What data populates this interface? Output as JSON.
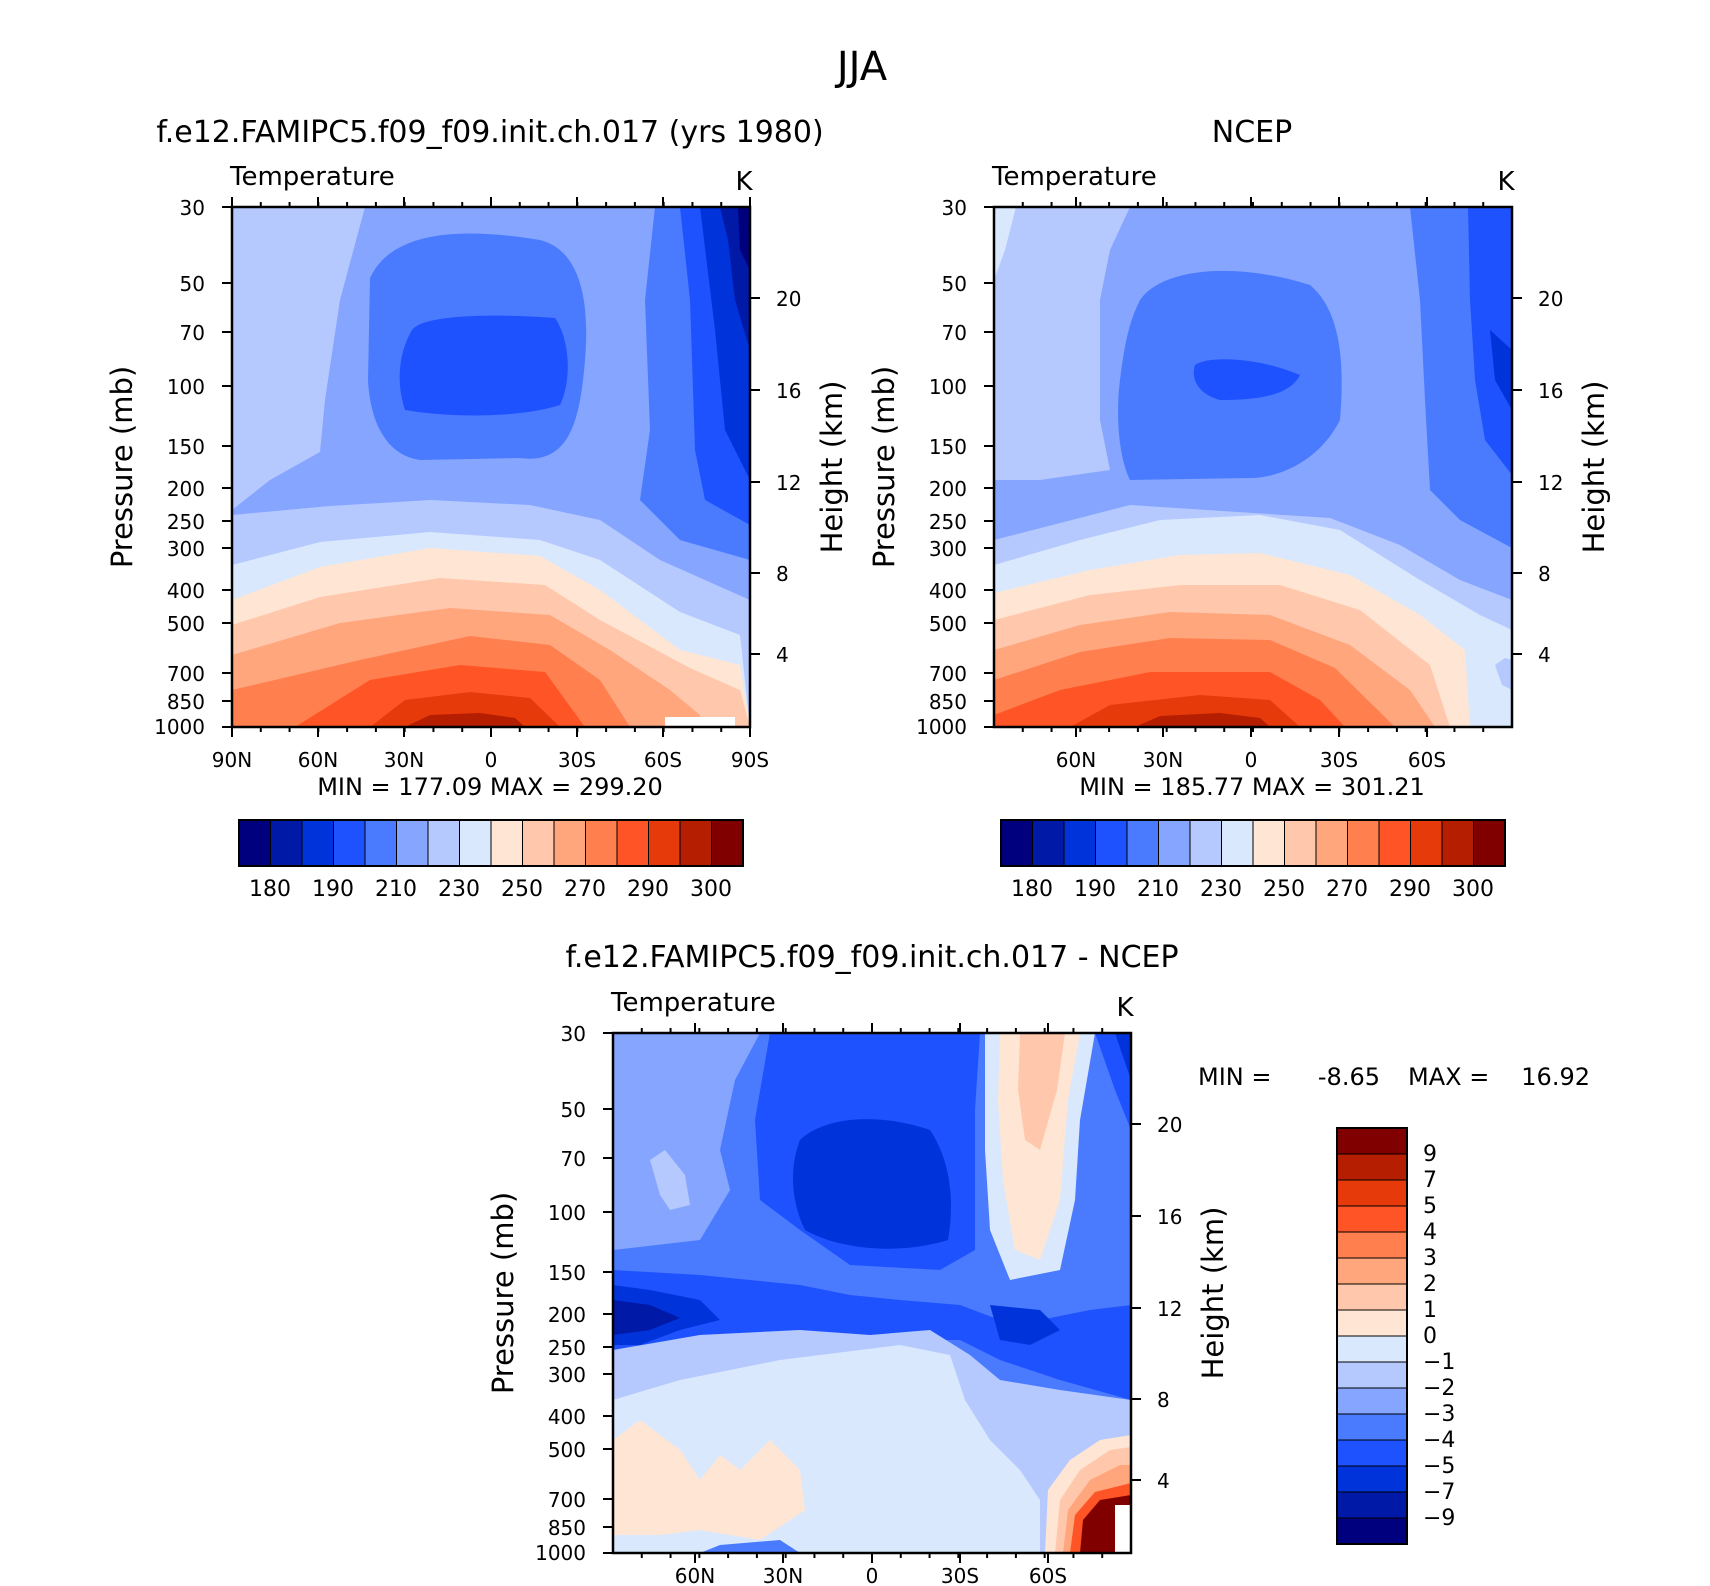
{
  "page_title": "JJA",
  "palettes": {
    "abs": [
      "#00007f",
      "#0019a6",
      "#0033d9",
      "#1f52ff",
      "#4a7bff",
      "#85a5ff",
      "#b5c9ff",
      "#d9e8fc",
      "#ffe6d4",
      "#ffc8ad",
      "#ffa67d",
      "#ff7f4f",
      "#ff5526",
      "#e63a0a",
      "#b51e00",
      "#800000"
    ],
    "diff": [
      "#00007f",
      "#0019a6",
      "#0033d9",
      "#1f52ff",
      "#4a7bff",
      "#85a5ff",
      "#b5c9ff",
      "#d9e8fc",
      "#ffe6d4",
      "#ffc8ad",
      "#ffa67d",
      "#ff7f4f",
      "#ff5526",
      "#e63a0a",
      "#b51e00",
      "#800000"
    ]
  },
  "chart_data": [
    {
      "type": "contour",
      "id": "model",
      "title": "f.e12.FAMIPC5.f09_f09.init.ch.017 (yrs 1980)",
      "variable": "Temperature",
      "units": "K",
      "ylabel": "Pressure (mb)",
      "y2label": "Height (km)",
      "pressure_ticks": [
        "30",
        "50",
        "70",
        "100",
        "150",
        "200",
        "250",
        "300",
        "400",
        "500",
        "700",
        "850",
        "1000"
      ],
      "height_ticks": [
        "20",
        "16",
        "12",
        "8",
        "4"
      ],
      "lat_ticks": [
        "90N",
        "60N",
        "30N",
        "0",
        "30S",
        "60S",
        "90S"
      ],
      "min_max": "MIN = 177.09 MAX = 299.20",
      "colorbar_labels": [
        "180",
        "190",
        "210",
        "230",
        "250",
        "270",
        "290",
        "300"
      ]
    },
    {
      "type": "contour",
      "id": "obs",
      "title": "NCEP",
      "variable": "Temperature",
      "units": "K",
      "ylabel": "Pressure (mb)",
      "y2label": "Height (km)",
      "pressure_ticks": [
        "30",
        "50",
        "70",
        "100",
        "150",
        "200",
        "250",
        "300",
        "400",
        "500",
        "700",
        "850",
        "1000"
      ],
      "height_ticks": [
        "20",
        "16",
        "12",
        "8",
        "4"
      ],
      "lat_ticks": [
        "60N",
        "30N",
        "0",
        "30S",
        "60S"
      ],
      "min_max": "MIN = 185.77 MAX = 301.21",
      "colorbar_labels": [
        "180",
        "190",
        "210",
        "230",
        "250",
        "270",
        "290",
        "300"
      ]
    },
    {
      "type": "contour",
      "id": "diff",
      "title": "f.e12.FAMIPC5.f09_f09.init.ch.017 - NCEP",
      "variable": "Temperature",
      "units": "K",
      "ylabel": "Pressure (mb)",
      "y2label": "Height (km)",
      "pressure_ticks": [
        "30",
        "50",
        "70",
        "100",
        "150",
        "200",
        "250",
        "300",
        "400",
        "500",
        "700",
        "850",
        "1000"
      ],
      "height_ticks": [
        "20",
        "16",
        "12",
        "8",
        "4"
      ],
      "lat_ticks": [
        "60N",
        "30N",
        "0",
        "30S",
        "60S"
      ],
      "min_label": "MIN =",
      "min_value": "-8.65",
      "max_label": "MAX =",
      "max_value": "16.92",
      "colorbar_labels": [
        "9",
        "7",
        "5",
        "4",
        "3",
        "2",
        "1",
        "0",
        "−1",
        "−2",
        "−3",
        "−4",
        "−5",
        "−7",
        "−9"
      ]
    }
  ]
}
